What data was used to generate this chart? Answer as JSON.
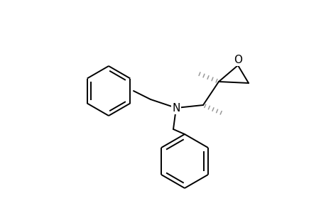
{
  "background": "#ffffff",
  "line_color": "#000000",
  "line_width": 1.4,
  "stereo_dash_color": "#999999",
  "N_label": "N",
  "O_label": "O",
  "font_size": 11
}
